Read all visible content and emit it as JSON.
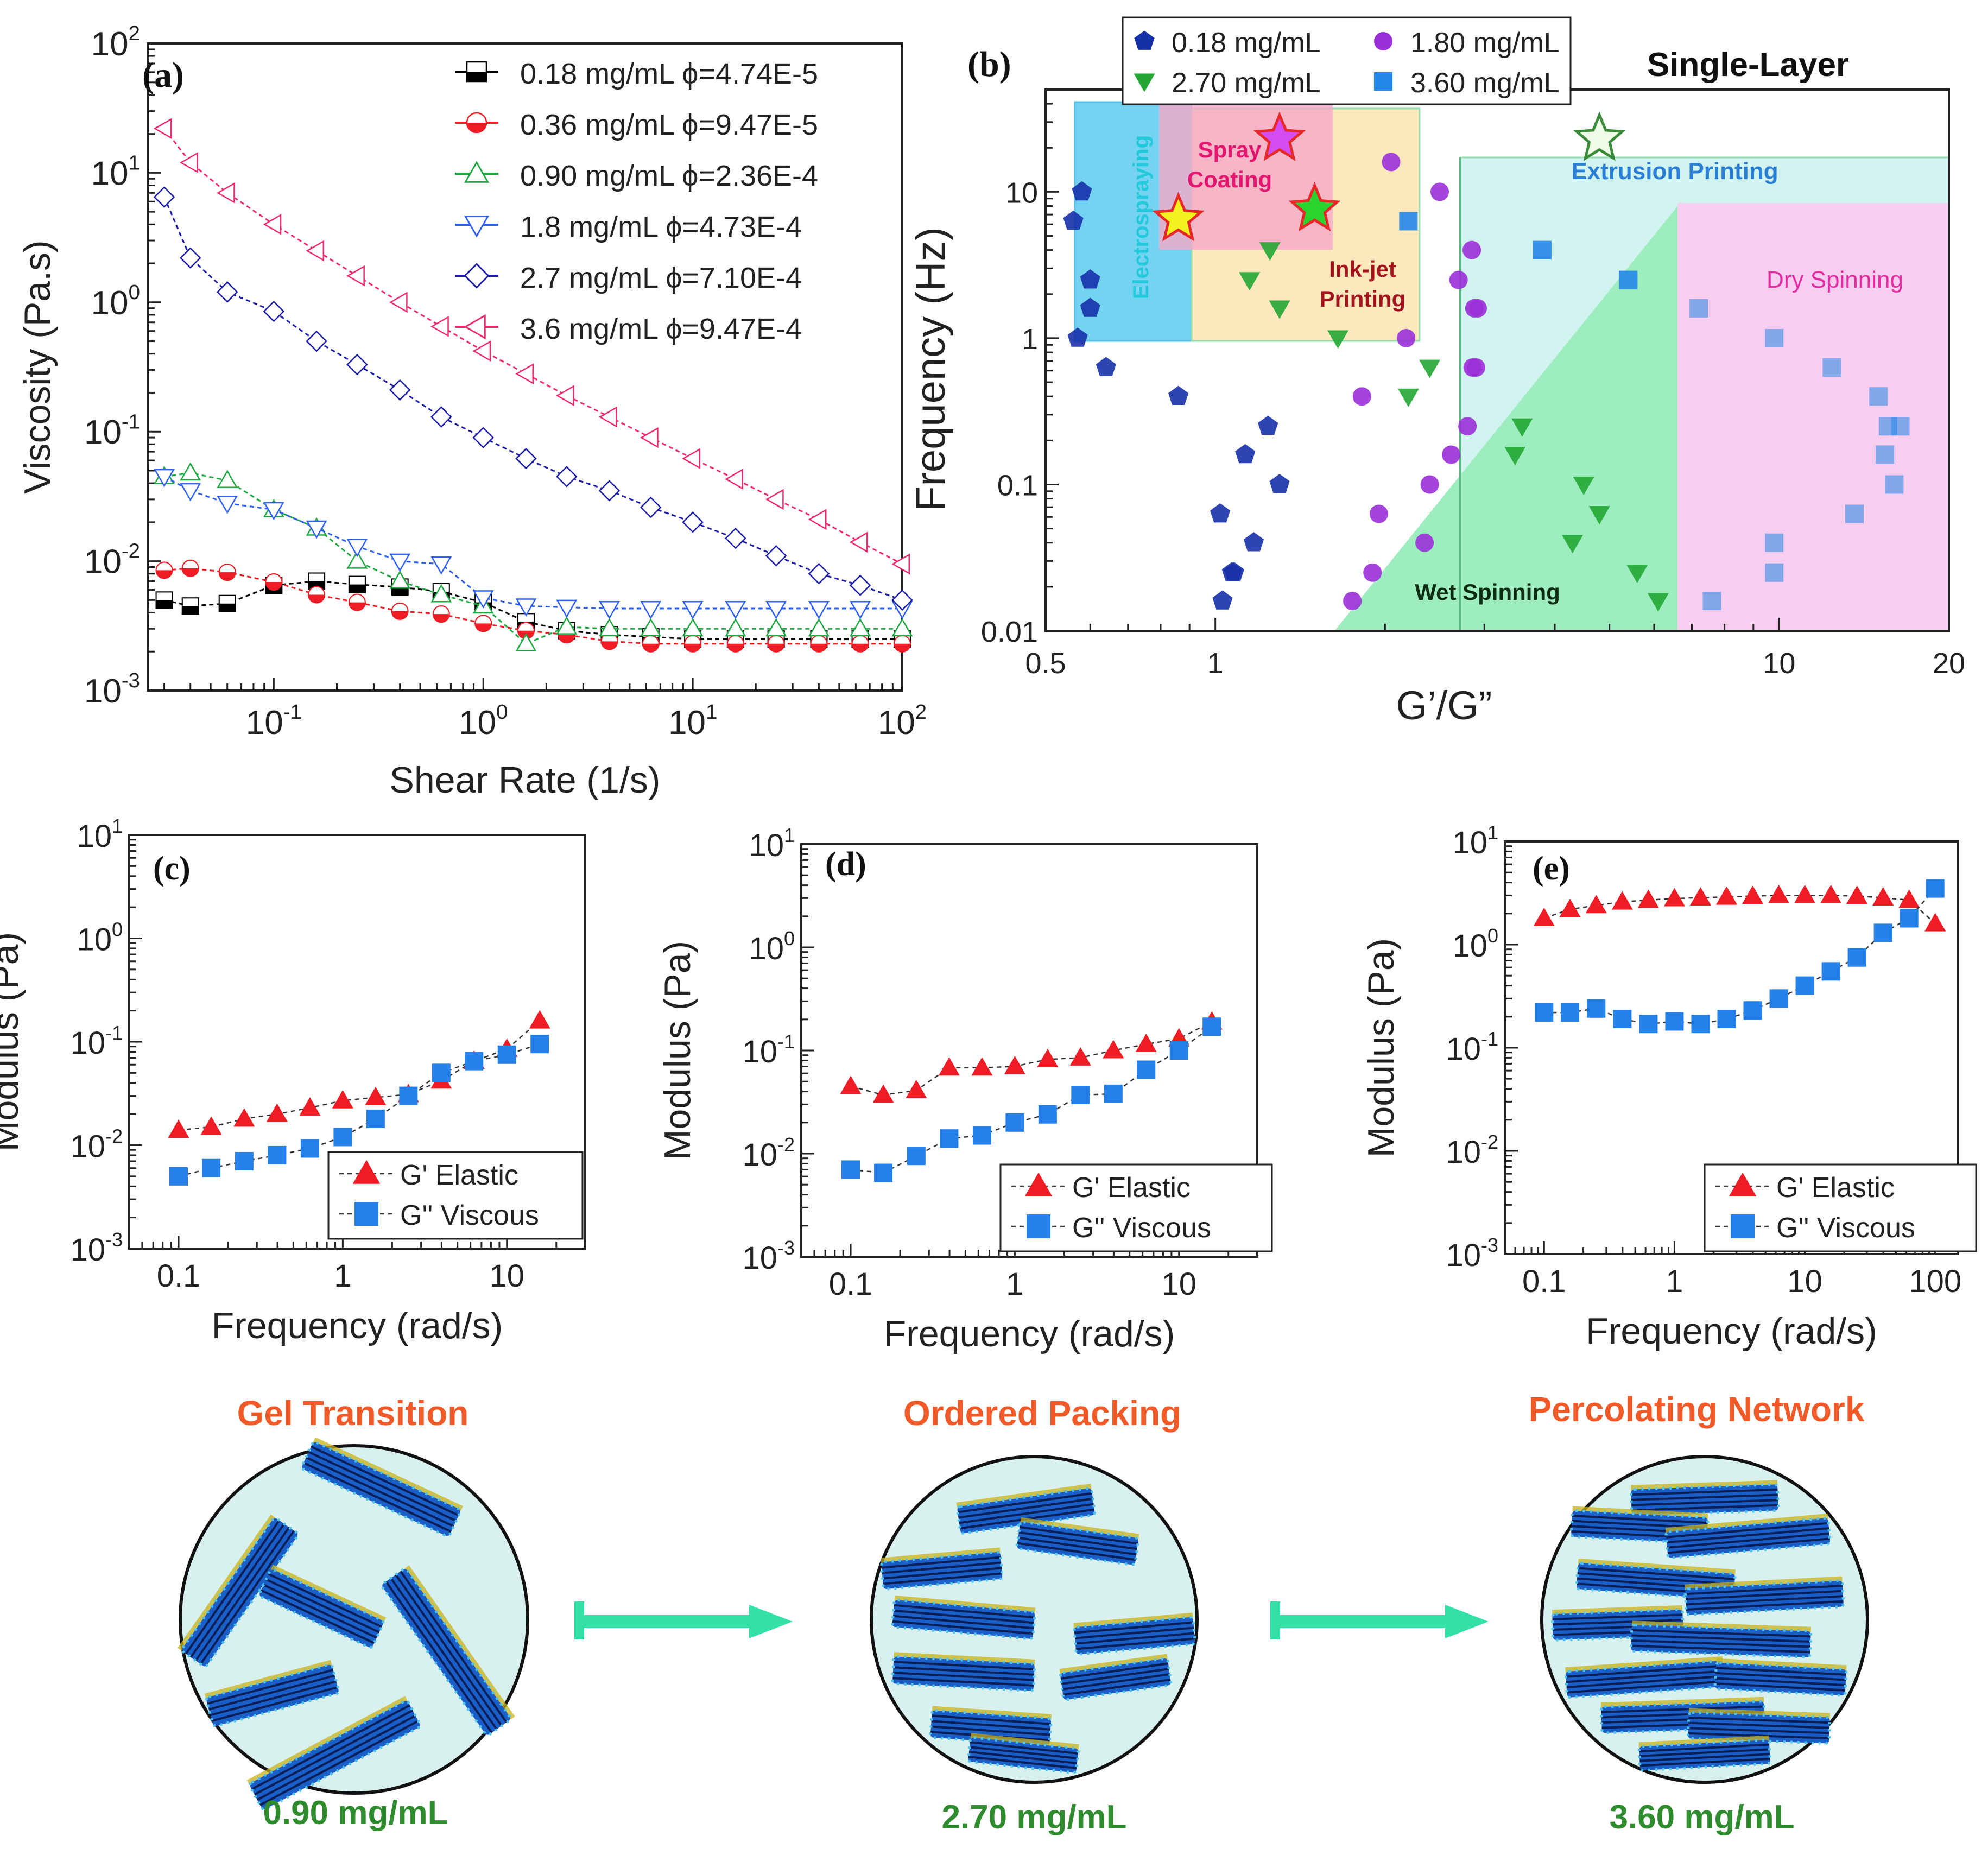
{
  "figure": {
    "bottom_panel": {
      "stages": [
        {
          "title": "Gel Transition",
          "concentration": "0.90 mg/mL"
        },
        {
          "title": "Ordered Packing",
          "concentration": "2.70 mg/mL"
        },
        {
          "title": "Percolating Network",
          "concentration": "3.60 mg/mL"
        }
      ],
      "title_color": "#f05a28",
      "concentration_color": "#2e8b2e",
      "arrow_color": "#33e0a8",
      "circle_fill": "#d8f1ee"
    }
  },
  "chart_data": [
    {
      "id": "a",
      "panel_label": "(a)",
      "type": "line",
      "xlabel": "Shear Rate (1/s)",
      "ylabel": "Viscosity (Pa.s)",
      "xscale": "log",
      "yscale": "log",
      "xlim": [
        0.025,
        100
      ],
      "ylim": [
        0.001,
        100
      ],
      "xticks": [
        {
          "v": 0.1,
          "b": "10",
          "e": "-1"
        },
        {
          "v": 1,
          "b": "10",
          "e": "0"
        },
        {
          "v": 10,
          "b": "10",
          "e": "1"
        },
        {
          "v": 100,
          "b": "10",
          "e": "2"
        }
      ],
      "yticks": [
        {
          "v": 0.001,
          "b": "10",
          "e": "-3"
        },
        {
          "v": 0.01,
          "b": "10",
          "e": "-2"
        },
        {
          "v": 0.1,
          "b": "10",
          "e": "-1"
        },
        {
          "v": 1,
          "b": "10",
          "e": "0"
        },
        {
          "v": 10,
          "b": "10",
          "e": "1"
        },
        {
          "v": 100,
          "b": "10",
          "e": "2"
        }
      ],
      "legend_position": "top-right",
      "series": [
        {
          "name": "0.18 mg/mL ϕ=4.74E-5",
          "marker": "square-half",
          "color": "#000000",
          "x": [
            0.03,
            0.04,
            0.06,
            0.1,
            0.16,
            0.25,
            0.4,
            0.63,
            1,
            1.6,
            2.5,
            4,
            6.3,
            10,
            16,
            25,
            40,
            63,
            100
          ],
          "y": [
            0.005,
            0.0045,
            0.0047,
            0.0065,
            0.007,
            0.0066,
            0.0063,
            0.0058,
            0.0048,
            0.0034,
            0.0029,
            0.0027,
            0.0026,
            0.0025,
            0.0025,
            0.0025,
            0.0025,
            0.0025,
            0.0025
          ]
        },
        {
          "name": "0.36 mg/mL ϕ=9.47E-5",
          "marker": "circle-half",
          "color": "#ee1c24",
          "x": [
            0.03,
            0.04,
            0.06,
            0.1,
            0.16,
            0.25,
            0.4,
            0.63,
            1,
            1.6,
            2.5,
            4,
            6.3,
            10,
            16,
            25,
            40,
            63,
            100
          ],
          "y": [
            0.0085,
            0.0088,
            0.0082,
            0.0069,
            0.0055,
            0.0048,
            0.0041,
            0.0039,
            0.0033,
            0.0029,
            0.0027,
            0.0024,
            0.0023,
            0.0023,
            0.0023,
            0.0023,
            0.0023,
            0.0023,
            0.0023
          ]
        },
        {
          "name": "0.90 mg/mL ϕ=2.36E-4",
          "marker": "triangle-up",
          "color": "#1da841",
          "x": [
            0.03,
            0.04,
            0.06,
            0.1,
            0.16,
            0.25,
            0.4,
            0.63,
            1,
            1.6,
            2.5,
            4,
            6.3,
            10,
            16,
            25,
            40,
            63,
            100
          ],
          "y": [
            0.045,
            0.048,
            0.042,
            0.025,
            0.018,
            0.01,
            0.007,
            0.0055,
            0.0045,
            0.0023,
            0.0031,
            0.003,
            0.003,
            0.003,
            0.003,
            0.003,
            0.003,
            0.003,
            0.003
          ]
        },
        {
          "name": "1.8 mg/mL ϕ=4.73E-4",
          "marker": "triangle-down",
          "color": "#2e5ff0",
          "x": [
            0.03,
            0.04,
            0.06,
            0.1,
            0.16,
            0.25,
            0.4,
            0.63,
            1,
            1.6,
            2.5,
            4,
            6.3,
            10,
            16,
            25,
            40,
            63,
            100
          ],
          "y": [
            0.045,
            0.035,
            0.028,
            0.025,
            0.018,
            0.013,
            0.01,
            0.0095,
            0.0052,
            0.0045,
            0.0044,
            0.0043,
            0.0043,
            0.0043,
            0.0043,
            0.0043,
            0.0043,
            0.0043,
            0.0043
          ]
        },
        {
          "name": "2.7 mg/mL ϕ=7.10E-4",
          "marker": "diamond",
          "color": "#1c1ca8",
          "x": [
            0.03,
            0.04,
            0.06,
            0.1,
            0.16,
            0.25,
            0.4,
            0.63,
            1,
            1.6,
            2.5,
            4,
            6.3,
            10,
            16,
            25,
            40,
            63,
            100
          ],
          "y": [
            6.5,
            2.2,
            1.2,
            0.85,
            0.5,
            0.33,
            0.21,
            0.13,
            0.09,
            0.062,
            0.045,
            0.035,
            0.026,
            0.02,
            0.015,
            0.011,
            0.008,
            0.0065,
            0.005
          ]
        },
        {
          "name": "3.6 mg/mL ϕ=9.47E-4",
          "marker": "triangle-left",
          "color": "#ee2a6e",
          "x": [
            0.03,
            0.04,
            0.06,
            0.1,
            0.16,
            0.25,
            0.4,
            0.63,
            1,
            1.6,
            2.5,
            4,
            6.3,
            10,
            16,
            25,
            40,
            63,
            100
          ],
          "y": [
            22,
            12,
            7,
            4,
            2.5,
            1.6,
            1.0,
            0.65,
            0.42,
            0.28,
            0.19,
            0.13,
            0.09,
            0.062,
            0.043,
            0.03,
            0.021,
            0.014,
            0.0095
          ]
        }
      ]
    },
    {
      "id": "b",
      "panel_label": "(b)",
      "type": "scatter",
      "xlabel": "G’/G”",
      "ylabel": "Frequency (Hz)",
      "xscale": "log",
      "yscale": "log",
      "xlim": [
        0.5,
        20
      ],
      "ylim": [
        0.01,
        50
      ],
      "xticks": [
        {
          "v": 0.5,
          "t": "0.5"
        },
        {
          "v": 1,
          "t": "1"
        },
        {
          "v": 10,
          "t": "10"
        },
        {
          "v": 20,
          "t": "20"
        }
      ],
      "yticks": [
        {
          "v": 0.01,
          "t": "0.01"
        },
        {
          "v": 0.1,
          "t": "0.1"
        },
        {
          "v": 1,
          "t": "1"
        },
        {
          "v": 10,
          "t": "10"
        }
      ],
      "title": "Single-Layer",
      "legend_position": "top",
      "regions": [
        {
          "name": "Electrospraying",
          "color": "#5ccbef",
          "text_color": "#22c9dc"
        },
        {
          "name": "Spray Coating",
          "color": "#f49ac1",
          "text_color": "#e4166f"
        },
        {
          "name": "Ink-jet Printing",
          "color": "#fde6b2",
          "text_color": "#a3151e"
        },
        {
          "name": "Extrusion Printing",
          "color": "#c9f2ee",
          "text_color": "#2a7fd4"
        },
        {
          "name": "Wet Spinning",
          "color": "#8ceab4",
          "text_color": "#0d2b12"
        },
        {
          "name": "Dry Spinning",
          "color": "#f6c6ee",
          "text_color": "#e22da1"
        }
      ],
      "stars": [
        {
          "x": 0.86,
          "y": 6.5,
          "color": "#f4f21e"
        },
        {
          "x": 1.3,
          "y": 23,
          "color": "#d44df2"
        },
        {
          "x": 1.5,
          "y": 7.6,
          "color": "#29d42e"
        },
        {
          "x": 4.8,
          "y": 23,
          "color": "#f0fbe8"
        }
      ],
      "series": [
        {
          "name": "0.18 mg/mL",
          "marker": "pentagon",
          "color": "#1630a8",
          "x": [
            0.56,
            0.58,
            0.6,
            0.6,
            0.57,
            0.64,
            0.86,
            1.02,
            1.07,
            1.17,
            1.24,
            1.3,
            1.13,
            1.08,
            1.03
          ],
          "y": [
            6.3,
            10,
            2.5,
            1.6,
            1.0,
            0.63,
            0.4,
            0.063,
            0.025,
            0.04,
            0.25,
            0.1,
            0.16,
            0.025,
            0.016
          ]
        },
        {
          "name": "1.80 mg/mL",
          "marker": "circle",
          "color": "#9b30d8",
          "x": [
            1.75,
            1.9,
            1.95,
            1.82,
            2.05,
            2.18,
            2.35,
            2.4,
            2.5,
            2.62,
            2.7,
            2.8,
            2.85,
            2.86,
            2.88,
            2.9,
            2.92
          ],
          "y": [
            0.016,
            0.025,
            0.063,
            0.4,
            16,
            1.0,
            0.04,
            0.1,
            10,
            0.16,
            2.5,
            0.25,
            4,
            0.63,
            1.6,
            0.63,
            1.6
          ]
        },
        {
          "name": "2.70 mg/mL",
          "marker": "triangle-down",
          "color": "#24a634",
          "x": [
            1.15,
            1.25,
            1.3,
            1.65,
            2.2,
            2.4,
            3.4,
            3.5,
            4.3,
            4.5,
            4.8,
            5.6,
            6.1
          ],
          "y": [
            2.5,
            4,
            1.6,
            1.0,
            0.4,
            0.63,
            0.16,
            0.25,
            0.04,
            0.1,
            0.063,
            0.025,
            0.016
          ]
        },
        {
          "name": "3.60 mg/mL",
          "marker": "square",
          "color": "#2486e8",
          "x": [
            2.2,
            3.8,
            5.4,
            7.2,
            7.6,
            9.8,
            9.8,
            9.8,
            12.4,
            13.6,
            15.0,
            15.4,
            15.6,
            16.0,
            16.4
          ],
          "y": [
            6.3,
            4,
            2.5,
            1.6,
            0.016,
            1.0,
            0.04,
            0.025,
            0.63,
            0.063,
            0.4,
            0.16,
            0.25,
            0.1,
            0.25
          ]
        }
      ]
    },
    {
      "id": "c",
      "panel_label": "(c)",
      "type": "line",
      "xlabel": "Frequency (rad/s)",
      "ylabel": "Modulus (Pa)",
      "xscale": "log",
      "yscale": "log",
      "xlim": [
        0.05,
        30
      ],
      "ylim": [
        0.001,
        10
      ],
      "xticks": [
        {
          "v": 0.1,
          "t": "0.1"
        },
        {
          "v": 1,
          "t": "1"
        },
        {
          "v": 10,
          "t": "10"
        }
      ],
      "yticks": [
        {
          "v": 0.001,
          "b": "10",
          "e": "-3"
        },
        {
          "v": 0.01,
          "b": "10",
          "e": "-2"
        },
        {
          "v": 0.1,
          "b": "10",
          "e": "-1"
        },
        {
          "v": 1,
          "b": "10",
          "e": "0"
        },
        {
          "v": 10,
          "b": "10",
          "e": "1"
        }
      ],
      "legend_position": "bottom-right",
      "series": [
        {
          "name": "G' Elastic",
          "marker": "triangle-up",
          "color": "#ee1c24",
          "x": [
            0.1,
            0.158,
            0.251,
            0.398,
            0.631,
            1.0,
            1.585,
            2.512,
            3.981,
            6.31,
            10.0,
            15.85
          ],
          "y": [
            0.014,
            0.015,
            0.018,
            0.02,
            0.023,
            0.027,
            0.029,
            0.031,
            0.042,
            0.065,
            0.085,
            0.16
          ]
        },
        {
          "name": "G'' Viscous",
          "marker": "square",
          "color": "#2680ea",
          "x": [
            0.1,
            0.158,
            0.251,
            0.398,
            0.631,
            1.0,
            1.585,
            2.512,
            3.981,
            6.31,
            10.0,
            15.85
          ],
          "y": [
            0.005,
            0.006,
            0.007,
            0.008,
            0.0093,
            0.012,
            0.018,
            0.03,
            0.05,
            0.065,
            0.075,
            0.095
          ]
        }
      ]
    },
    {
      "id": "d",
      "panel_label": "(d)",
      "type": "line",
      "xlabel": "Frequency (rad/s)",
      "ylabel": "Modulus (Pa)",
      "xscale": "log",
      "yscale": "log",
      "xlim": [
        0.05,
        30
      ],
      "ylim": [
        0.001,
        10
      ],
      "xticks": [
        {
          "v": 0.1,
          "t": "0.1"
        },
        {
          "v": 1,
          "t": "1"
        },
        {
          "v": 10,
          "t": "10"
        }
      ],
      "yticks": [
        {
          "v": 0.001,
          "b": "10",
          "e": "-3"
        },
        {
          "v": 0.01,
          "b": "10",
          "e": "-2"
        },
        {
          "v": 0.1,
          "b": "10",
          "e": "-1"
        },
        {
          "v": 1,
          "b": "10",
          "e": "0"
        },
        {
          "v": 10,
          "b": "10",
          "e": "1"
        }
      ],
      "legend_position": "bottom-right",
      "series": [
        {
          "name": "G' Elastic",
          "marker": "triangle-up",
          "color": "#ee1c24",
          "x": [
            0.1,
            0.158,
            0.251,
            0.398,
            0.631,
            1.0,
            1.585,
            2.512,
            3.981,
            6.31,
            10.0,
            15.85
          ],
          "y": [
            0.045,
            0.037,
            0.041,
            0.068,
            0.068,
            0.07,
            0.082,
            0.085,
            0.1,
            0.115,
            0.13,
            0.19
          ]
        },
        {
          "name": "G'' Viscous",
          "marker": "square",
          "color": "#2680ea",
          "x": [
            0.1,
            0.158,
            0.251,
            0.398,
            0.631,
            1.0,
            1.585,
            2.512,
            3.981,
            6.31,
            10.0,
            15.85
          ],
          "y": [
            0.007,
            0.0065,
            0.0095,
            0.014,
            0.015,
            0.02,
            0.024,
            0.037,
            0.038,
            0.065,
            0.1,
            0.17
          ]
        }
      ]
    },
    {
      "id": "e",
      "panel_label": "(e)",
      "type": "line",
      "xlabel": "Frequency (rad/s)",
      "ylabel": "Modulus (Pa)",
      "xscale": "log",
      "yscale": "log",
      "xlim": [
        0.05,
        150
      ],
      "ylim": [
        0.001,
        10
      ],
      "xticks": [
        {
          "v": 0.1,
          "t": "0.1"
        },
        {
          "v": 1,
          "t": "1"
        },
        {
          "v": 10,
          "t": "10"
        },
        {
          "v": 100,
          "t": "100"
        }
      ],
      "yticks": [
        {
          "v": 0.001,
          "b": "10",
          "e": "-3"
        },
        {
          "v": 0.01,
          "b": "10",
          "e": "-2"
        },
        {
          "v": 0.1,
          "b": "10",
          "e": "-1"
        },
        {
          "v": 1,
          "b": "10",
          "e": "0"
        },
        {
          "v": 10,
          "b": "10",
          "e": "1"
        }
      ],
      "legend_position": "bottom-right",
      "series": [
        {
          "name": "G' Elastic",
          "marker": "triangle-up",
          "color": "#ee1c24",
          "x": [
            0.1,
            0.158,
            0.251,
            0.398,
            0.631,
            1.0,
            1.585,
            2.512,
            3.981,
            6.31,
            10.0,
            15.85,
            25.12,
            39.81,
            63.1,
            100
          ],
          "y": [
            1.8,
            2.2,
            2.4,
            2.6,
            2.7,
            2.8,
            2.85,
            2.9,
            2.95,
            3.0,
            3.0,
            3.0,
            2.95,
            2.85,
            2.7,
            1.6
          ]
        },
        {
          "name": "G'' Viscous",
          "marker": "square",
          "color": "#2680ea",
          "x": [
            0.1,
            0.158,
            0.251,
            0.398,
            0.631,
            1.0,
            1.585,
            2.512,
            3.981,
            6.31,
            10.0,
            15.85,
            25.12,
            39.81,
            63.1,
            100
          ],
          "y": [
            0.22,
            0.22,
            0.24,
            0.19,
            0.17,
            0.18,
            0.17,
            0.19,
            0.23,
            0.3,
            0.4,
            0.55,
            0.75,
            1.3,
            1.8,
            3.5
          ]
        }
      ]
    }
  ]
}
